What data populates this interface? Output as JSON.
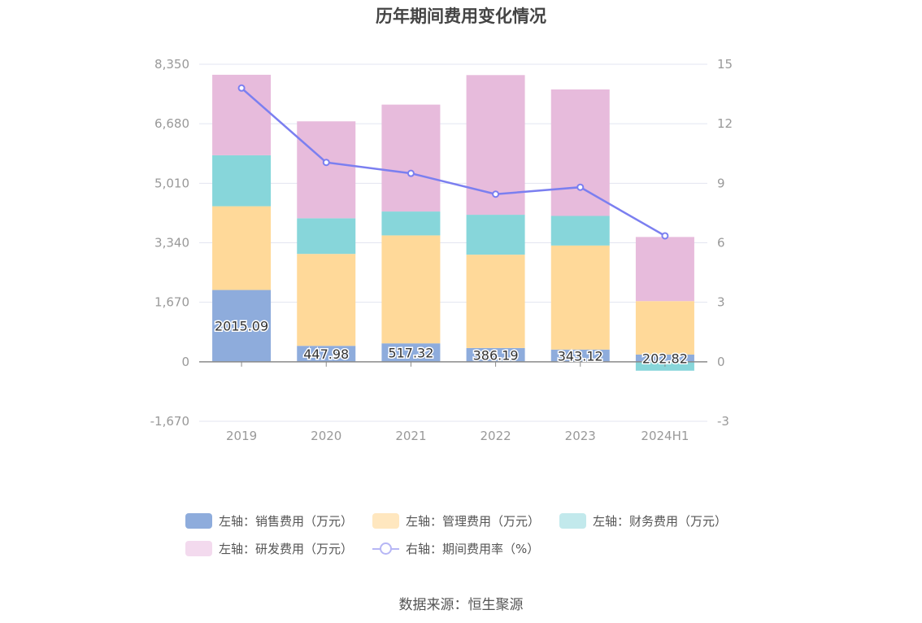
{
  "title": "历年期间费用变化情况",
  "source": "数据来源：恒生聚源",
  "legend": [
    {
      "label": "左轴：销售费用（万元）",
      "color": "#8eacdc",
      "kind": "box"
    },
    {
      "label": "左轴：管理费用（万元）",
      "color": "#ffe7bf",
      "kind": "box"
    },
    {
      "label": "左轴：财务费用（万元）",
      "color": "#c2e9ec",
      "kind": "box"
    },
    {
      "label": "左轴：研发费用（万元）",
      "color": "#f3daee",
      "kind": "box"
    },
    {
      "label": "右轴：期间费用率（%）",
      "color": "#b6b6f5",
      "kind": "line"
    }
  ],
  "chart_data": {
    "type": "bar",
    "stacked": true,
    "categories": [
      "2019",
      "2020",
      "2021",
      "2022",
      "2023",
      "2024H1"
    ],
    "y_left": {
      "ticks": [
        "8,350",
        "6,680",
        "5,010",
        "3,340",
        "1,670",
        "0",
        "-1,670"
      ],
      "ylim": [
        -1670,
        8350
      ]
    },
    "y_right": {
      "ticks": [
        "15",
        "12",
        "9",
        "6",
        "3",
        "0",
        "-3"
      ],
      "ylim": [
        -3,
        15
      ]
    },
    "grid": true,
    "legend_position": "bottom",
    "series": [
      {
        "name": "左轴：销售费用（万元）",
        "axis": "left",
        "color": "#8eacdc",
        "values": [
          2015.09,
          447.98,
          517.32,
          386.19,
          343.12,
          202.82
        ],
        "labels": [
          "2015.09",
          "447.98",
          "517.32",
          "386.19",
          "343.12",
          "202.82"
        ]
      },
      {
        "name": "左轴：管理费用（万元）",
        "axis": "left",
        "color": "#ffd999",
        "values": [
          2350,
          2580,
          3030,
          2620,
          2920,
          1500
        ]
      },
      {
        "name": "左轴：财务费用（万元）",
        "axis": "left",
        "color": "#87d6da",
        "values": [
          1430,
          1000,
          670,
          1120,
          830,
          -250
        ]
      },
      {
        "name": "左轴：研发费用（万元）",
        "axis": "left",
        "color": "#e7bbdc",
        "values": [
          2260,
          2720,
          3000,
          3920,
          3550,
          1800
        ]
      },
      {
        "name": "右轴：期间费用率（%）",
        "axis": "right",
        "type": "line",
        "color": "#7b7ff0",
        "values": [
          13.8,
          10.05,
          9.5,
          8.45,
          8.8,
          6.35
        ]
      }
    ]
  }
}
